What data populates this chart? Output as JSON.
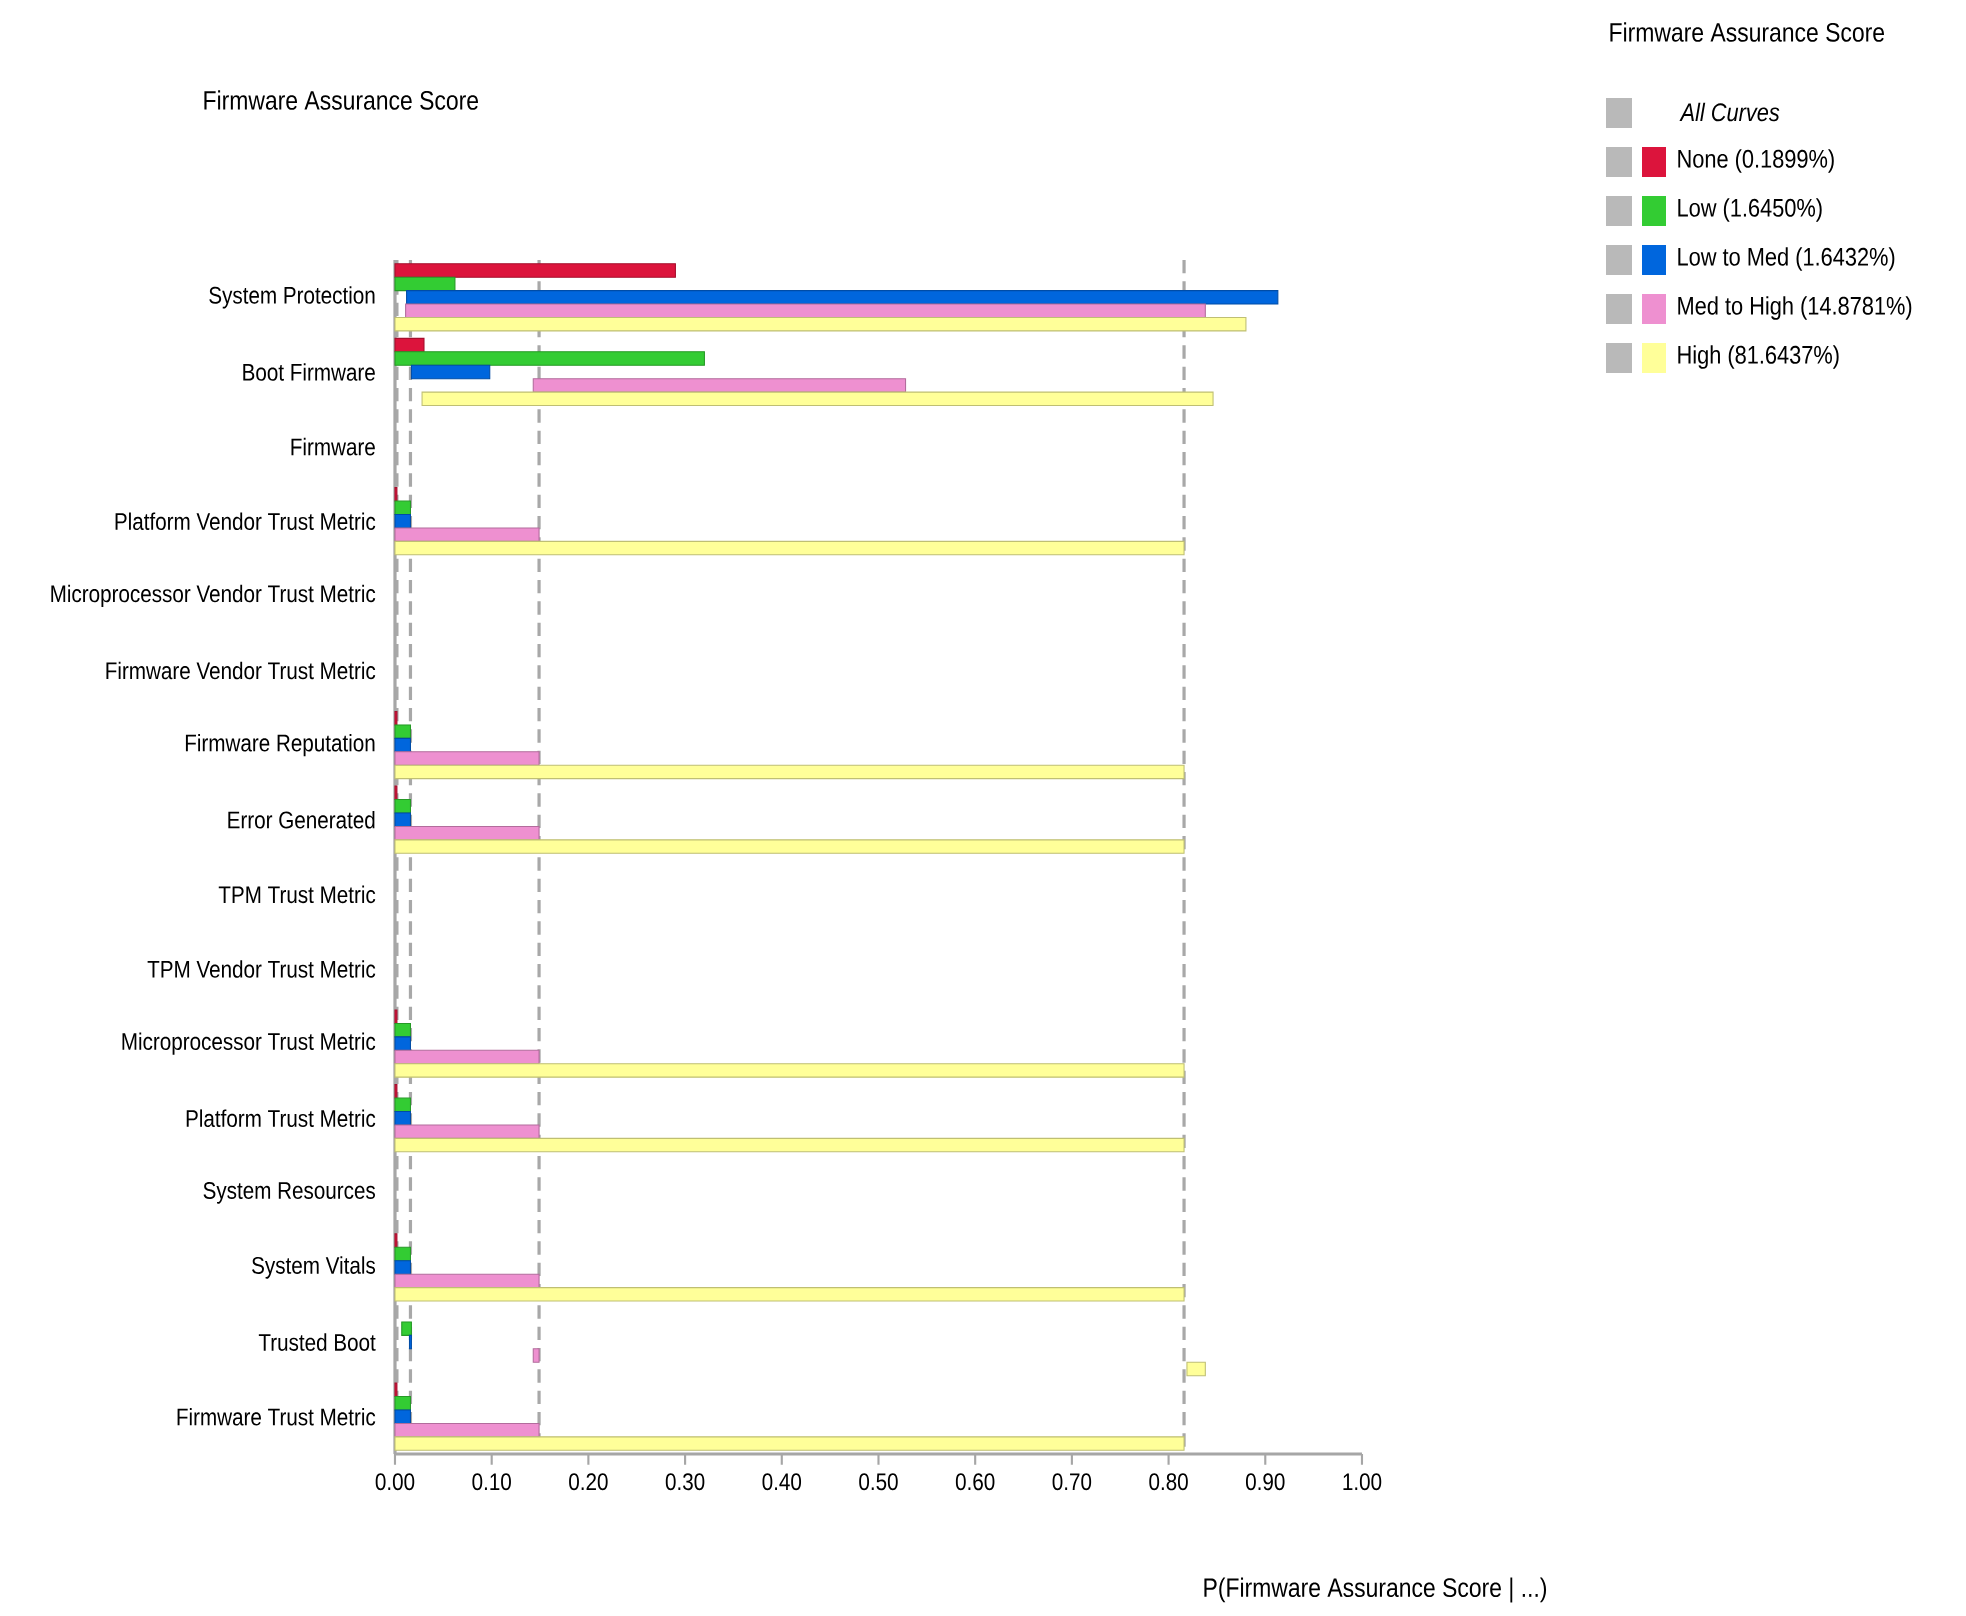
{
  "chart_data": {
    "type": "bar",
    "orientation": "horizontal",
    "title": "Firmware Assurance Score",
    "xlabel": "P(Firmware Assurance Score | ...)",
    "legend_title": "Firmware Assurance Score",
    "legend": "top right",
    "grid": false,
    "annotations": [
      "All Curves"
    ],
    "categories": [
      "System Protection",
      "Boot Firmware",
      "Firmware",
      "Platform Vendor Trust Metric",
      "Microprocessor Vendor Trust Metric",
      "Firmware Vendor Trust Metric",
      "Firmware Reputation",
      "Error Generated",
      "TPM Trust Metric",
      "TPM Vendor Trust Metric",
      "Microprocessor Trust Metric",
      "Platform Trust Metric",
      "System Resources",
      "System Vitals",
      "Trusted Boot",
      "Firmware Trust Metric"
    ],
    "xlim": [
      0,
      1
    ],
    "xticks": [
      {
        "value": 0,
        "label": "0.00"
      },
      {
        "value": 0.1,
        "label": "0.10"
      },
      {
        "value": 0.2,
        "label": "0.20"
      },
      {
        "value": 0.3,
        "label": "0.30"
      },
      {
        "value": 0.4,
        "label": "0.40"
      },
      {
        "value": 0.5,
        "label": "0.50"
      },
      {
        "value": 0.6,
        "label": "0.60"
      },
      {
        "value": 0.7,
        "label": "0.70"
      },
      {
        "value": 0.8,
        "label": "0.80"
      },
      {
        "value": 0.9,
        "label": "0.90"
      },
      {
        "value": 1,
        "label": "1.00"
      }
    ],
    "ref_lines": [
      {
        "axis": "x",
        "value": 0.002,
        "color": "#a8a8a8",
        "line_style": "dashed"
      },
      {
        "axis": "x",
        "value": 0.016,
        "color": "#a8a8a8",
        "line_style": "dashed"
      },
      {
        "axis": "x",
        "value": 0.149,
        "color": "#a8a8a8",
        "line_style": "dashed"
      },
      {
        "axis": "x",
        "value": 0.816,
        "color": "#a8a8a8",
        "line_style": "dashed"
      }
    ],
    "series": [
      {
        "name": "None (0.1899%)",
        "color": "#dc143c",
        "base": [
          0,
          0,
          null,
          0,
          null,
          null,
          0,
          0,
          null,
          null,
          0,
          0,
          null,
          0,
          null,
          0
        ],
        "values": [
          0.29,
          0.03,
          null,
          0.002,
          null,
          null,
          0.002,
          0.002,
          null,
          null,
          0.002,
          0.002,
          null,
          0.002,
          null,
          0.002
        ]
      },
      {
        "name": "Low (1.6450%)",
        "color": "#33cc33",
        "base": [
          0,
          0,
          null,
          0,
          null,
          null,
          0,
          0,
          null,
          null,
          0,
          0,
          null,
          0,
          0.007,
          0
        ],
        "values": [
          0.062,
          0.32,
          null,
          0.016,
          null,
          null,
          0.016,
          0.016,
          null,
          null,
          0.016,
          0.016,
          null,
          0.016,
          0.01,
          0.016
        ]
      },
      {
        "name": "Low to Med (1.6432%)",
        "color": "#0066dd",
        "base": [
          0.012,
          0.017,
          null,
          0,
          null,
          null,
          0,
          0,
          null,
          null,
          0,
          0,
          null,
          0,
          0.015,
          0
        ],
        "values": [
          0.901,
          0.081,
          null,
          0.016,
          null,
          null,
          0.016,
          0.016,
          null,
          null,
          0.016,
          0.016,
          null,
          0.016,
          0.002,
          0.016
        ]
      },
      {
        "name": "Med to High (14.8781%)",
        "color": "#ee90d0",
        "base": [
          0.011,
          0.143,
          null,
          0,
          null,
          null,
          0,
          0,
          null,
          null,
          0,
          0,
          null,
          0,
          0.143,
          0
        ],
        "values": [
          0.827,
          0.385,
          null,
          0.149,
          null,
          null,
          0.149,
          0.149,
          null,
          null,
          0.149,
          0.149,
          null,
          0.149,
          0.006,
          0.149
        ]
      },
      {
        "name": "High (81.6437%)",
        "color": "#ffff99",
        "base": [
          0,
          0.028,
          null,
          0,
          null,
          null,
          0,
          0,
          null,
          null,
          0,
          0,
          null,
          0,
          0.819,
          0
        ],
        "values": [
          0.88,
          0.818,
          null,
          0.816,
          null,
          null,
          0.816,
          0.816,
          null,
          null,
          0.816,
          0.816,
          null,
          0.816,
          0.019,
          0.816
        ]
      }
    ]
  }
}
